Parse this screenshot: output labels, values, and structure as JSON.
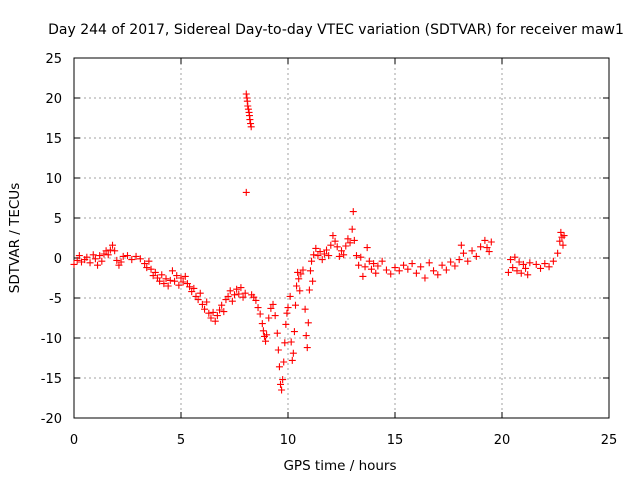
{
  "chart_data": {
    "type": "scatter",
    "title": "Day 244 of 2017, Sidereal Day-to-day VTEC variation (SDTVAR) for receiver maw1",
    "xlabel": "GPS time / hours",
    "ylabel": "SDTVAR / TECUs",
    "xlim": [
      0,
      25
    ],
    "ylim": [
      -20,
      25
    ],
    "xticks": [
      0,
      5,
      10,
      15,
      20,
      25
    ],
    "yticks": [
      -20,
      -15,
      -10,
      -5,
      0,
      5,
      10,
      15,
      20,
      25
    ],
    "grid": true,
    "marker": "plus",
    "color": "#ff0000",
    "series": [
      {
        "name": "SDTVAR",
        "points": [
          [
            0.0,
            -0.8
          ],
          [
            0.15,
            -0.3
          ],
          [
            0.25,
            0.3
          ],
          [
            0.35,
            -0.5
          ],
          [
            0.5,
            -0.2
          ],
          [
            0.6,
            0.1
          ],
          [
            0.75,
            -0.6
          ],
          [
            0.9,
            0.4
          ],
          [
            1.0,
            -0.1
          ],
          [
            1.1,
            -0.9
          ],
          [
            1.2,
            0.3
          ],
          [
            1.3,
            -0.4
          ],
          [
            1.4,
            0.5
          ],
          [
            1.5,
            0.9
          ],
          [
            1.6,
            0.4
          ],
          [
            1.7,
            1.0
          ],
          [
            1.8,
            1.6
          ],
          [
            1.9,
            0.9
          ],
          [
            2.0,
            -0.3
          ],
          [
            2.1,
            -0.9
          ],
          [
            2.2,
            -0.5
          ],
          [
            2.3,
            0.2
          ],
          [
            2.5,
            0.3
          ],
          [
            2.7,
            -0.2
          ],
          [
            2.9,
            0.2
          ],
          [
            3.1,
            -0.1
          ],
          [
            3.3,
            -0.7
          ],
          [
            3.4,
            -1.2
          ],
          [
            3.5,
            -0.4
          ],
          [
            3.6,
            -1.4
          ],
          [
            3.7,
            -2.2
          ],
          [
            3.8,
            -1.8
          ],
          [
            3.9,
            -2.5
          ],
          [
            4.0,
            -2.9
          ],
          [
            4.1,
            -2.1
          ],
          [
            4.2,
            -3.2
          ],
          [
            4.3,
            -2.6
          ],
          [
            4.4,
            -3.5
          ],
          [
            4.5,
            -2.8
          ],
          [
            4.6,
            -1.6
          ],
          [
            4.7,
            -2.9
          ],
          [
            4.8,
            -2.2
          ],
          [
            4.9,
            -3.4
          ],
          [
            5.0,
            -2.5
          ],
          [
            5.1,
            -3.0
          ],
          [
            5.2,
            -2.3
          ],
          [
            5.3,
            -3.2
          ],
          [
            5.4,
            -3.6
          ],
          [
            5.5,
            -4.2
          ],
          [
            5.6,
            -3.8
          ],
          [
            5.7,
            -4.8
          ],
          [
            5.8,
            -5.2
          ],
          [
            5.9,
            -4.4
          ],
          [
            6.0,
            -5.8
          ],
          [
            6.1,
            -6.4
          ],
          [
            6.2,
            -5.5
          ],
          [
            6.3,
            -6.9
          ],
          [
            6.4,
            -7.5
          ],
          [
            6.5,
            -6.8
          ],
          [
            6.6,
            -7.9
          ],
          [
            6.7,
            -7.2
          ],
          [
            6.8,
            -6.5
          ],
          [
            6.9,
            -5.9
          ],
          [
            7.0,
            -6.7
          ],
          [
            7.1,
            -5.2
          ],
          [
            7.2,
            -4.8
          ],
          [
            7.3,
            -4.1
          ],
          [
            7.4,
            -5.4
          ],
          [
            7.5,
            -4.6
          ],
          [
            7.6,
            -3.9
          ],
          [
            7.7,
            -4.5
          ],
          [
            7.8,
            -3.7
          ],
          [
            7.9,
            -4.9
          ],
          [
            8.0,
            -4.4
          ],
          [
            8.05,
            8.2
          ],
          [
            8.05,
            20.5
          ],
          [
            8.08,
            20.0
          ],
          [
            8.1,
            19.6
          ],
          [
            8.12,
            19.0
          ],
          [
            8.15,
            18.6
          ],
          [
            8.18,
            18.2
          ],
          [
            8.2,
            17.8
          ],
          [
            8.22,
            17.3
          ],
          [
            8.25,
            16.8
          ],
          [
            8.28,
            16.4
          ],
          [
            8.3,
            -4.6
          ],
          [
            8.4,
            -4.9
          ],
          [
            8.5,
            -5.3
          ],
          [
            8.6,
            -6.2
          ],
          [
            8.7,
            -7.0
          ],
          [
            8.8,
            -8.2
          ],
          [
            8.85,
            -9.1
          ],
          [
            8.9,
            -9.8
          ],
          [
            8.95,
            -10.4
          ],
          [
            9.0,
            -9.6
          ],
          [
            9.1,
            -7.5
          ],
          [
            9.2,
            -6.3
          ],
          [
            9.3,
            -5.8
          ],
          [
            9.4,
            -7.2
          ],
          [
            9.5,
            -9.4
          ],
          [
            9.55,
            -11.5
          ],
          [
            9.6,
            -13.6
          ],
          [
            9.65,
            -15.8
          ],
          [
            9.7,
            -16.5
          ],
          [
            9.75,
            -15.2
          ],
          [
            9.8,
            -13.0
          ],
          [
            9.85,
            -10.6
          ],
          [
            9.9,
            -8.3
          ],
          [
            9.95,
            -6.9
          ],
          [
            10.0,
            -6.2
          ],
          [
            10.1,
            -4.8
          ],
          [
            10.15,
            -10.5
          ],
          [
            10.2,
            -12.8
          ],
          [
            10.25,
            -11.9
          ],
          [
            10.3,
            -9.2
          ],
          [
            10.35,
            -5.9
          ],
          [
            10.4,
            -3.5
          ],
          [
            10.45,
            -1.8
          ],
          [
            10.5,
            -2.6
          ],
          [
            10.55,
            -4.1
          ],
          [
            10.6,
            -2.0
          ],
          [
            10.7,
            -1.5
          ],
          [
            10.8,
            -6.4
          ],
          [
            10.85,
            -9.7
          ],
          [
            10.9,
            -11.2
          ],
          [
            10.95,
            -8.1
          ],
          [
            11.0,
            -4.0
          ],
          [
            11.05,
            -1.6
          ],
          [
            11.1,
            -0.4
          ],
          [
            11.15,
            -2.9
          ],
          [
            11.2,
            0.4
          ],
          [
            11.3,
            1.2
          ],
          [
            11.4,
            0.3
          ],
          [
            11.5,
            0.8
          ],
          [
            11.6,
            -0.2
          ],
          [
            11.7,
            0.5
          ],
          [
            11.8,
            1.0
          ],
          [
            11.9,
            0.3
          ],
          [
            12.0,
            1.6
          ],
          [
            12.1,
            2.8
          ],
          [
            12.2,
            2.1
          ],
          [
            12.3,
            1.4
          ],
          [
            12.4,
            0.2
          ],
          [
            12.5,
            0.9
          ],
          [
            12.6,
            0.4
          ],
          [
            12.7,
            1.5
          ],
          [
            12.8,
            2.4
          ],
          [
            12.9,
            1.9
          ],
          [
            13.0,
            3.6
          ],
          [
            13.05,
            5.8
          ],
          [
            13.1,
            2.2
          ],
          [
            13.2,
            0.3
          ],
          [
            13.3,
            -0.9
          ],
          [
            13.4,
            0.1
          ],
          [
            13.5,
            -2.3
          ],
          [
            13.6,
            -1.1
          ],
          [
            13.7,
            1.3
          ],
          [
            13.8,
            -0.4
          ],
          [
            13.9,
            -1.4
          ],
          [
            14.0,
            -0.7
          ],
          [
            14.1,
            -1.9
          ],
          [
            14.2,
            -1.0
          ],
          [
            14.4,
            -0.4
          ],
          [
            14.6,
            -1.5
          ],
          [
            14.8,
            -2.0
          ],
          [
            15.0,
            -1.2
          ],
          [
            15.2,
            -1.6
          ],
          [
            15.4,
            -0.9
          ],
          [
            15.6,
            -1.4
          ],
          [
            15.8,
            -0.7
          ],
          [
            16.0,
            -1.9
          ],
          [
            16.2,
            -1.1
          ],
          [
            16.4,
            -2.5
          ],
          [
            16.6,
            -0.6
          ],
          [
            16.8,
            -1.6
          ],
          [
            17.0,
            -2.1
          ],
          [
            17.2,
            -0.9
          ],
          [
            17.4,
            -1.5
          ],
          [
            17.6,
            -0.5
          ],
          [
            17.8,
            -1.0
          ],
          [
            18.0,
            -0.2
          ],
          [
            18.1,
            1.6
          ],
          [
            18.2,
            0.6
          ],
          [
            18.4,
            -0.4
          ],
          [
            18.6,
            0.9
          ],
          [
            18.8,
            0.2
          ],
          [
            19.0,
            1.4
          ],
          [
            19.2,
            2.2
          ],
          [
            19.3,
            1.3
          ],
          [
            19.4,
            0.8
          ],
          [
            19.5,
            2.0
          ],
          [
            20.3,
            -1.8
          ],
          [
            20.4,
            -0.2
          ],
          [
            20.5,
            -1.2
          ],
          [
            20.6,
            0.1
          ],
          [
            20.7,
            -1.6
          ],
          [
            20.8,
            -0.5
          ],
          [
            20.9,
            -1.9
          ],
          [
            21.0,
            -0.8
          ],
          [
            21.1,
            -1.3
          ],
          [
            21.2,
            -2.1
          ],
          [
            21.3,
            -0.6
          ],
          [
            21.6,
            -0.8
          ],
          [
            21.8,
            -1.3
          ],
          [
            22.0,
            -0.7
          ],
          [
            22.2,
            -1.1
          ],
          [
            22.4,
            -0.4
          ],
          [
            22.6,
            0.6
          ],
          [
            22.7,
            2.1
          ],
          [
            22.75,
            3.2
          ],
          [
            22.8,
            2.6
          ],
          [
            22.85,
            1.6
          ],
          [
            22.9,
            2.8
          ]
        ]
      }
    ]
  }
}
